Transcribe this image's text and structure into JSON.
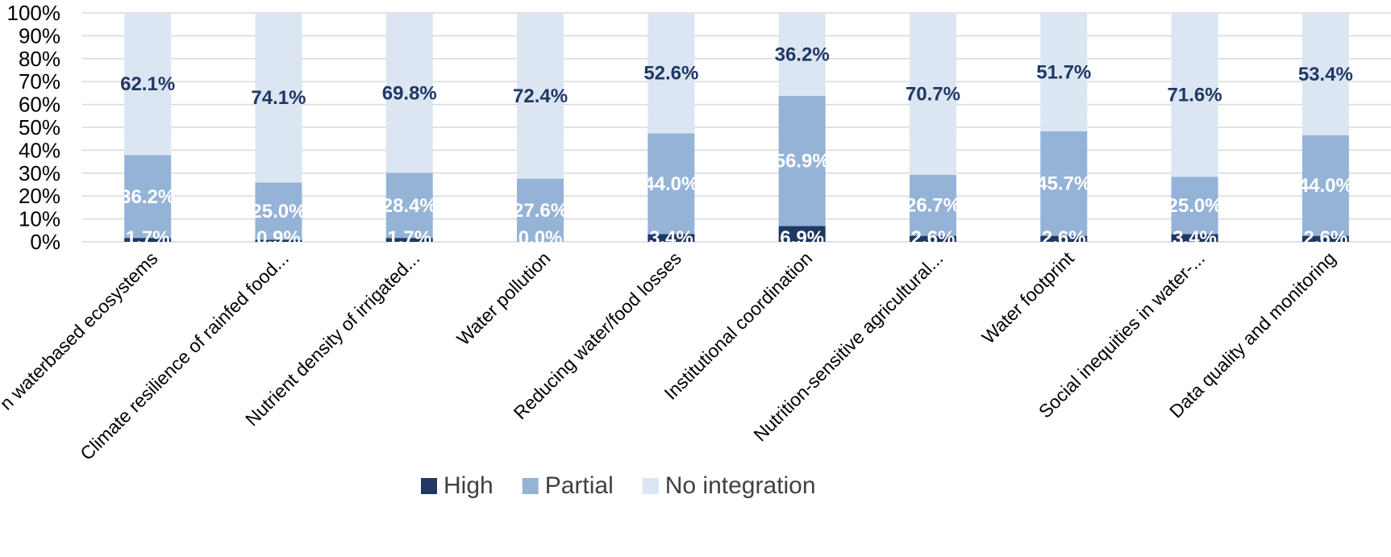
{
  "chart_data": {
    "type": "bar",
    "stacked": true,
    "categories": [
      "n waterbased ecosystems",
      "Climate resilience of rainfed food...",
      "Nutrient density of irrigated...",
      "Water pollution",
      "Reducing water/food losses",
      "Institutional coordination",
      "Nutrition-sensitive agricultural...",
      "Water footprint",
      "Social inequities in water-...",
      "Data quality and monitoring"
    ],
    "series": [
      {
        "name": "High",
        "color": "#203864",
        "label_color": "#ffffff",
        "values": [
          1.7,
          0.9,
          1.7,
          0.0,
          3.4,
          6.9,
          2.6,
          2.6,
          3.4,
          2.6
        ],
        "labels": [
          "1.7%",
          "0.9%",
          "1.7%",
          "0.0%",
          "3.4%",
          "6.9%",
          "2.6%",
          "2.6%",
          "3.4%",
          "2.6%"
        ]
      },
      {
        "name": "Partial",
        "color": "#95b3d7",
        "label_color": "#ffffff",
        "values": [
          36.2,
          25.0,
          28.4,
          27.6,
          44.0,
          56.9,
          26.7,
          45.7,
          25.0,
          44.0
        ],
        "labels": [
          "36.2%",
          "25.0%",
          "28.4%",
          "27.6%",
          "44.0%",
          "56.9%",
          "26.7%",
          "45.7%",
          "25.0%",
          "44.0%"
        ]
      },
      {
        "name": "No integration",
        "color": "#dce6f2",
        "label_color": "#1f3864",
        "values": [
          62.1,
          74.1,
          69.8,
          72.4,
          52.6,
          36.2,
          70.7,
          51.7,
          71.6,
          53.4
        ],
        "labels": [
          "62.1%",
          "74.1%",
          "69.8%",
          "72.4%",
          "52.6%",
          "36.2%",
          "70.7%",
          "51.7%",
          "71.6%",
          "53.4%"
        ]
      }
    ],
    "y_ticks": [
      "0%",
      "10%",
      "20%",
      "30%",
      "40%",
      "50%",
      "60%",
      "70%",
      "80%",
      "90%",
      "100%"
    ],
    "ylim": [
      0,
      100
    ],
    "grid": true,
    "legend_position": "bottom",
    "title": "",
    "xlabel": "",
    "ylabel": ""
  }
}
